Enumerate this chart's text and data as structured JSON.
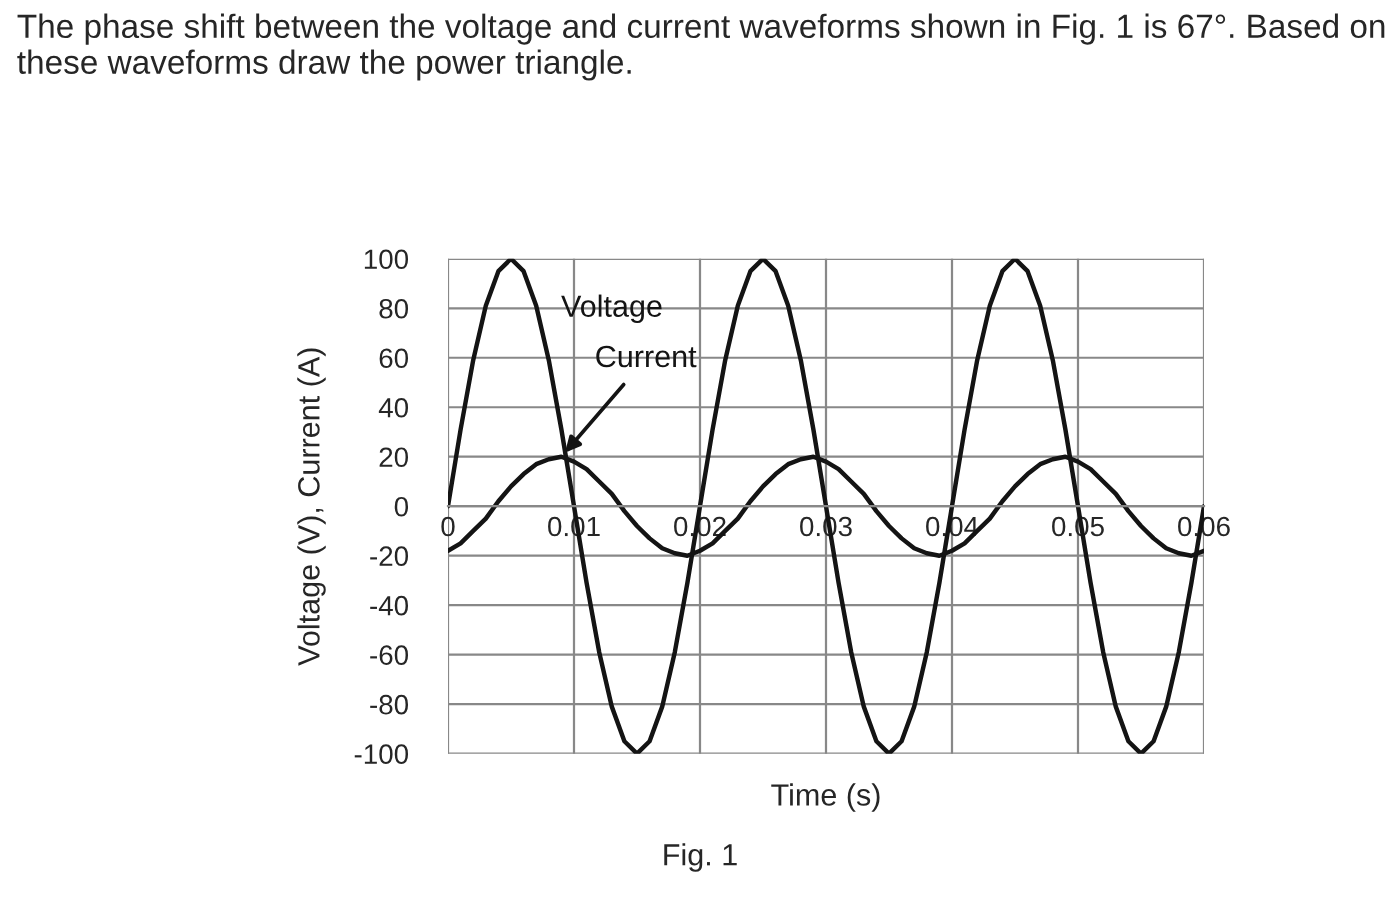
{
  "chart_data": {
    "type": "line",
    "title": "The phase shift between the voltage and current waveforms shown in Fig. 1 is 67°. Based on these waveforms draw the power triangle.",
    "xlabel": "Time (s)",
    "ylabel": "Voltage (V), Current (A)",
    "x": [
      0,
      0.001,
      0.002,
      0.003,
      0.004,
      0.005,
      0.006,
      0.007,
      0.008,
      0.009,
      0.01,
      0.011,
      0.012,
      0.013,
      0.014,
      0.015,
      0.016,
      0.017,
      0.018,
      0.019,
      0.02,
      0.021,
      0.022,
      0.023,
      0.024,
      0.025,
      0.026,
      0.027,
      0.028,
      0.029,
      0.03,
      0.031,
      0.032,
      0.033,
      0.034,
      0.035,
      0.036,
      0.037,
      0.038,
      0.039,
      0.04,
      0.041,
      0.042,
      0.043,
      0.044,
      0.045,
      0.046,
      0.047,
      0.048,
      0.049,
      0.05,
      0.051,
      0.052,
      0.053,
      0.054,
      0.055,
      0.056,
      0.057,
      0.058,
      0.059,
      0.06
    ],
    "series": [
      {
        "name": "Voltage",
        "color": "#141414",
        "values": [
          0,
          31,
          59,
          81,
          95,
          100,
          95,
          81,
          59,
          31,
          0,
          -31,
          -59,
          -81,
          -95,
          -100,
          -95,
          -81,
          -59,
          -31,
          0,
          31,
          59,
          81,
          95,
          100,
          95,
          81,
          59,
          31,
          0,
          -31,
          -59,
          -81,
          -95,
          -100,
          -95,
          -81,
          -59,
          -31,
          0,
          31,
          59,
          81,
          95,
          100,
          95,
          81,
          59,
          31,
          0,
          -31,
          -59,
          -81,
          -95,
          -100,
          -95,
          -81,
          -59,
          -31,
          0
        ]
      },
      {
        "name": "Current",
        "color": "#141414",
        "values": [
          -18,
          -15,
          -10,
          -5,
          2,
          8,
          13,
          17,
          19,
          20,
          18,
          15,
          10,
          5,
          -2,
          -8,
          -13,
          -17,
          -19,
          -20,
          -18,
          -15,
          -10,
          -5,
          2,
          8,
          13,
          17,
          19,
          20,
          18,
          15,
          10,
          5,
          -2,
          -8,
          -13,
          -17,
          -19,
          -20,
          -18,
          -15,
          -10,
          -5,
          2,
          8,
          13,
          17,
          19,
          20,
          18,
          15,
          10,
          5,
          -2,
          -8,
          -13,
          -17,
          -19,
          -20,
          -18
        ]
      }
    ],
    "xlim": [
      0,
      0.06
    ],
    "xticks": [
      0,
      0.01,
      0.02,
      0.03,
      0.04,
      0.05,
      0.06
    ],
    "ylim": [
      -100,
      100
    ],
    "yticks": [
      -100,
      -80,
      -60,
      -40,
      -20,
      0,
      20,
      40,
      60,
      80,
      100
    ],
    "grid": true,
    "marker": "none",
    "line_style": "solid",
    "legend": false,
    "annotations": [
      "Fig. 1"
    ]
  }
}
